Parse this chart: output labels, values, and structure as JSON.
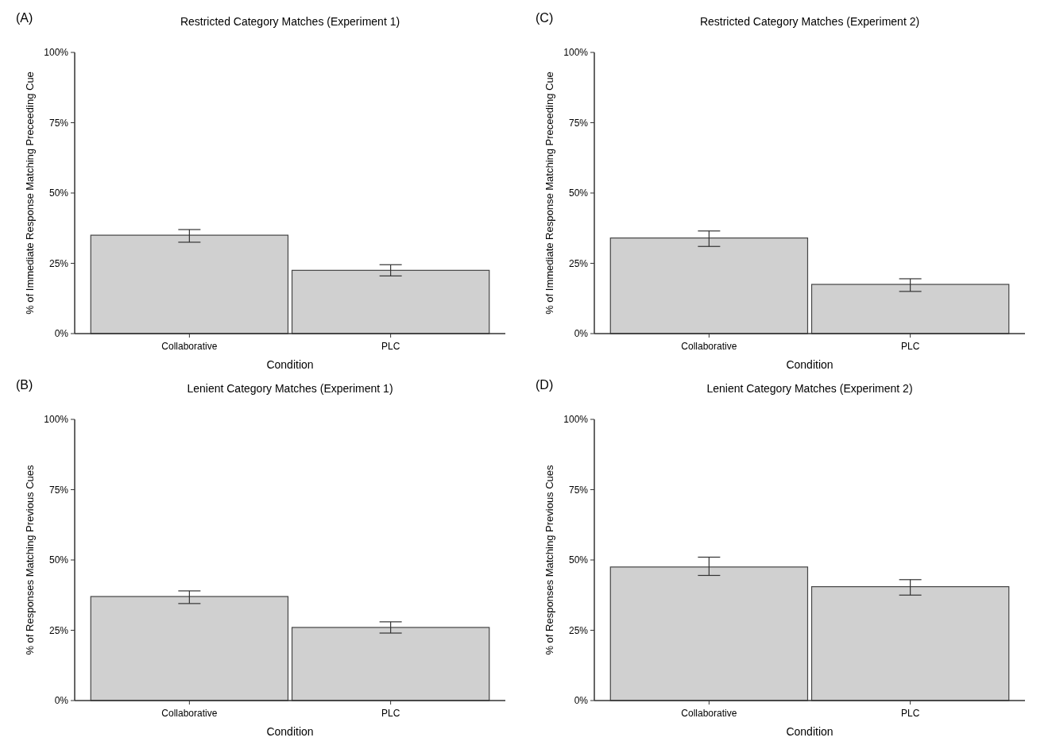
{
  "chart_data": [
    {
      "type": "bar",
      "title": "Restricted Category Matches (Experiment 1)",
      "xlabel": "Condition",
      "ylabel": "% of Immediate Response Matching Preceeding Cue",
      "annotations": [
        "(A)"
      ],
      "categories": [
        "Collaborative",
        "PLC"
      ],
      "values": [
        35,
        22.5
      ],
      "errors": [
        [
          32.5,
          37
        ],
        [
          20.5,
          24.5
        ]
      ],
      "color": "#d0d0d0",
      "ylim": [
        0,
        100
      ],
      "yticks": [
        {
          "value": 0,
          "label": "0%"
        },
        {
          "value": 25,
          "label": "25%"
        },
        {
          "value": 50,
          "label": "50%"
        },
        {
          "value": 75,
          "label": "75%"
        },
        {
          "value": 100,
          "label": "100%"
        }
      ]
    },
    {
      "type": "bar",
      "title": "Restricted Category Matches (Experiment 2)",
      "xlabel": "Condition",
      "ylabel": "% of Immediate Response Matching Preceeding Cue",
      "annotations": [
        "(C)"
      ],
      "categories": [
        "Collaborative",
        "PLC"
      ],
      "values": [
        34,
        17.5
      ],
      "errors": [
        [
          31,
          36.5
        ],
        [
          15,
          19.5
        ]
      ],
      "color": "#d0d0d0",
      "ylim": [
        0,
        100
      ],
      "yticks": [
        {
          "value": 0,
          "label": "0%"
        },
        {
          "value": 25,
          "label": "25%"
        },
        {
          "value": 50,
          "label": "50%"
        },
        {
          "value": 75,
          "label": "75%"
        },
        {
          "value": 100,
          "label": "100%"
        }
      ]
    },
    {
      "type": "bar",
      "title": "Lenient Category Matches (Experiment 1)",
      "xlabel": "Condition",
      "ylabel": "% of Responses Matching Previous Cues",
      "annotations": [
        "(B)"
      ],
      "categories": [
        "Collaborative",
        "PLC"
      ],
      "values": [
        37,
        26
      ],
      "errors": [
        [
          34.5,
          39
        ],
        [
          24,
          28
        ]
      ],
      "color": "#d0d0d0",
      "ylim": [
        0,
        100
      ],
      "yticks": [
        {
          "value": 0,
          "label": "0%"
        },
        {
          "value": 25,
          "label": "25%"
        },
        {
          "value": 50,
          "label": "50%"
        },
        {
          "value": 75,
          "label": "75%"
        },
        {
          "value": 100,
          "label": "100%"
        }
      ]
    },
    {
      "type": "bar",
      "title": "Lenient Category Matches (Experiment 2)",
      "xlabel": "Condition",
      "ylabel": "% of Responses Matching Previous Cues",
      "annotations": [
        "(D)"
      ],
      "categories": [
        "Collaborative",
        "PLC"
      ],
      "values": [
        47.5,
        40.5
      ],
      "errors": [
        [
          44.5,
          51
        ],
        [
          37.5,
          43
        ]
      ],
      "color": "#d0d0d0",
      "ylim": [
        0,
        100
      ],
      "yticks": [
        {
          "value": 0,
          "label": "0%"
        },
        {
          "value": 25,
          "label": "25%"
        },
        {
          "value": 50,
          "label": "50%"
        },
        {
          "value": 75,
          "label": "75%"
        },
        {
          "value": 100,
          "label": "100%"
        }
      ]
    }
  ]
}
